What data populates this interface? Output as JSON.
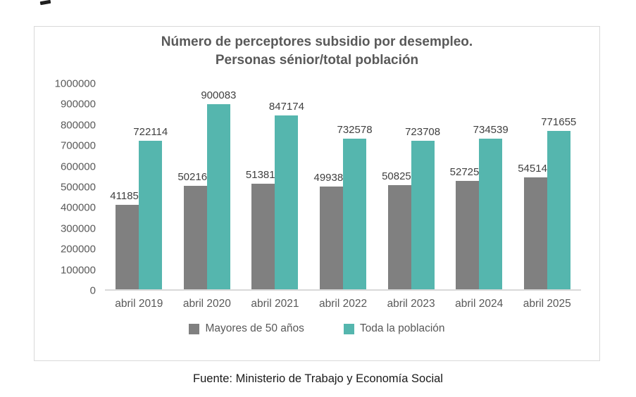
{
  "page": {
    "source_caption": "Fuente: Ministerio de Trabajo y Economía Social"
  },
  "chart_data": {
    "type": "bar",
    "title_line1": "Número de perceptores subsidio por desempleo.",
    "title_line2": "Personas sénior/total población",
    "categories": [
      "abril 2019",
      "abril 2020",
      "abril 2021",
      "abril 2022",
      "abril 2023",
      "abril 2024",
      "abril 2025"
    ],
    "series": [
      {
        "name": "Mayores de 50 años",
        "color": "#808080",
        "values": [
          411852,
          502162,
          513818,
          499383,
          508256,
          527252,
          545143
        ]
      },
      {
        "name": "Toda la población",
        "color": "#55B6AE",
        "values": [
          722114,
          900083,
          847174,
          732578,
          723708,
          734539,
          771655
        ]
      }
    ],
    "ylim": [
      0,
      1000000
    ],
    "y_tick_step": 100000,
    "grid": false,
    "value_labels": true,
    "legend_position": "bottom",
    "xlabel": "",
    "ylabel": ""
  }
}
